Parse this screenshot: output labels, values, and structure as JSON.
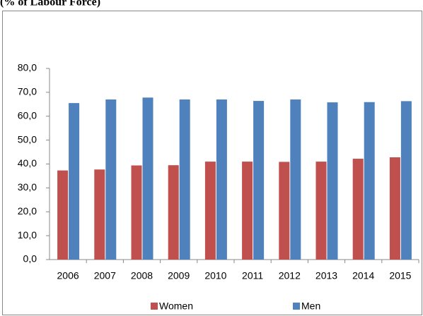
{
  "chart_data": {
    "type": "bar",
    "title": "(% of Labour Force)",
    "categories": [
      "2006",
      "2007",
      "2008",
      "2009",
      "2010",
      "2011",
      "2012",
      "2013",
      "2014",
      "2015"
    ],
    "series": [
      {
        "name": "Women",
        "color": "#c0504d",
        "values": [
          37.3,
          37.7,
          39.4,
          39.5,
          41.0,
          41.0,
          40.9,
          41.0,
          42.2,
          42.8
        ]
      },
      {
        "name": "Men",
        "color": "#4f81bd",
        "values": [
          65.5,
          67.0,
          67.8,
          67.0,
          67.0,
          66.4,
          67.0,
          65.8,
          65.9,
          66.3
        ]
      }
    ],
    "ylim": [
      0,
      80
    ],
    "yticks": [
      {
        "value": 0,
        "label": "0,0"
      },
      {
        "value": 10,
        "label": "10,0"
      },
      {
        "value": 20,
        "label": "20,0"
      },
      {
        "value": 30,
        "label": "30,0"
      },
      {
        "value": 40,
        "label": "40,0"
      },
      {
        "value": 50,
        "label": "50,0"
      },
      {
        "value": 60,
        "label": "60,0"
      },
      {
        "value": 70,
        "label": "70,0"
      },
      {
        "value": 80,
        "label": "80,0"
      }
    ],
    "grid": false,
    "legend": "bottom"
  }
}
